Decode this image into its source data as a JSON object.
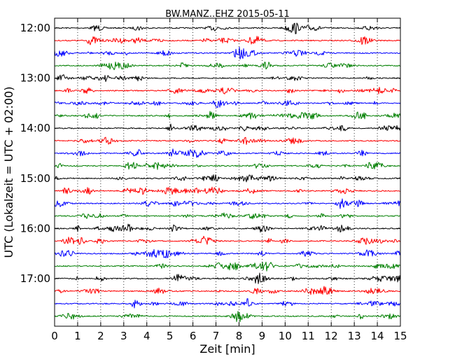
{
  "chart_data": {
    "type": "line",
    "title": "BW.MANZ..EHZ 2015-05-11",
    "xlabel": "Zeit  [min]",
    "ylabel": "UTC (Lokalzeit = UTC + 02:00)",
    "xlim": [
      0,
      15
    ],
    "x_ticks": [
      "0",
      "1",
      "2",
      "3",
      "4",
      "5",
      "6",
      "7",
      "8",
      "9",
      "10",
      "11",
      "12",
      "13",
      "14",
      "15"
    ],
    "y_tick_labels": [
      "12:00",
      "13:00",
      "14:00",
      "15:00",
      "16:00",
      "17:00"
    ],
    "y_tick_traces": [
      0,
      4,
      8,
      12,
      16,
      20
    ],
    "trace_count": 24,
    "trace_interval_minutes": 15,
    "start_time": "12:00",
    "trace_colors": [
      "#000000",
      "#ff0000",
      "#0000ff",
      "#007f00"
    ],
    "vertical_grid": "dotted",
    "legend": "none"
  }
}
